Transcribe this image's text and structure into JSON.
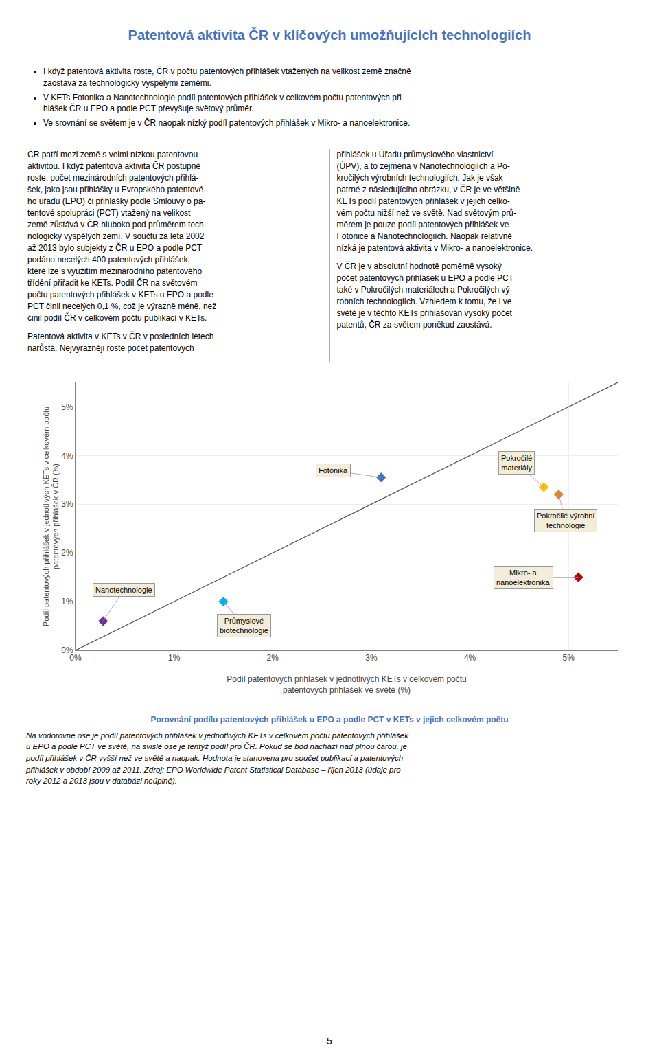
{
  "title": "Patentová aktivita ČR v klíčových umožňujících technologiích",
  "bullets": [
    "I když patentová aktivita roste, ČR v počtu patentových přihlášek vtažených na velikost země značně\nzaostává za technologicky vyspělými zeměmi.",
    "V KETs Fotonika a Nanotechnologie podíl patentových přihlášek v celkovém počtu patentových při-\nhlášek ČR u EPO a podle PCT převyšuje světový průměr.",
    "Ve srovnání se světem je v ČR naopak nízký podíl patentových přihlášek v Mikro- a nanoelektronice."
  ],
  "text_columns": [
    [
      [
        "ČR patří mezi země s velmi nízkou patentovou",
        "aktivitou. I když patentová aktivita ČR postupně",
        "roste, počet mezinárodních patentových přihlá-",
        "šek, jako jsou přihlášky u Evropského patentové-",
        "ho úřadu (EPO) či přihlášky podle Smlouvy o pa-",
        "tentové spolupráci (PCT) vtažený na velikost",
        "země zůstává v ČR hluboko pod průměrem tech-",
        "nologicky vyspělých zemí. V součtu za léta 2002",
        "až 2013 bylo subjekty z ČR u EPO a podle PCT",
        "podáno necelých 400 patentových přihlášek,",
        "které lze s využitím mezinárodního patentového",
        "třídění přiřadit ke KETs. Podíl ČR na světovém",
        "počtu patentových přihlášek v KETs u EPO a podle",
        "PCT činil necelých 0,1 %, což je výrazně méně, než",
        "činil podíl ČR v celkovém počtu publikací v KETs."
      ],
      [
        "Patentová aktivita v KETs v ČR v posledních letech",
        "narůstá. Nejvýrazněji roste počet patentových"
      ]
    ],
    [
      [
        "přihlášek u Úřadu průmyslového vlastnictví",
        "(ÚPV), a to zejména v Nanotechnologiích a Po-",
        "kročilých výrobních technologiích. Jak je však",
        "patrné z následujícího obrázku, v ČR je ve většině",
        "KETs podíl patentových přihlášek v jejich celko-",
        "vém počtu nižší než ve světě. Nad světovým prů-",
        "měrem je pouze podíl patentových přihlášek ve",
        "Fotonice a Nanotechnologiích. Naopak relativně",
        "nízká je patentová aktivita v Mikro- a nanoelektronice."
      ],
      [
        "V ČR je v absolutní hodnotě poměrně vysoký",
        "počet patentových přihlášek u EPO a podle PCT",
        "také v Pokročilých materiálech a Pokročilých vý-",
        "robních technologiích. Vzhledem k tomu, že i ve",
        "světě je v těchto KETs přihlašován vysoký počet",
        "patentů, ČR za světem poněkud zaostává."
      ]
    ]
  ],
  "chart_data": {
    "type": "scatter",
    "title": "Porovnání podílu patentových přihlášek u EPO a podle PCT v KETs v jejich celkovém počtu",
    "x_label": [
      "Podíl patentových přihlášek v jednotlivých KETs v celkovém počtu",
      "patentových přihlášek ve světě (%)"
    ],
    "y_label": [
      "Podíl patentových přihlášek v jednotlivých KETs v celkovém počtu",
      "patentových přihlášek v ČR (%)"
    ],
    "xlim": [
      0,
      5.5
    ],
    "ylim": [
      0,
      5.5
    ],
    "xticks": [
      {
        "value": 0,
        "label": "0%"
      },
      {
        "value": 1,
        "label": "1%"
      },
      {
        "value": 2,
        "label": "2%"
      },
      {
        "value": 3,
        "label": "3%"
      },
      {
        "value": 4,
        "label": "4%"
      },
      {
        "value": 5,
        "label": "5%"
      }
    ],
    "yticks": [
      {
        "value": 0,
        "label": "0%"
      },
      {
        "value": 1,
        "label": "1%"
      },
      {
        "value": 2,
        "label": "2%"
      },
      {
        "value": 3,
        "label": "3%"
      },
      {
        "value": 4,
        "label": "4%"
      },
      {
        "value": 5,
        "label": "5%"
      }
    ],
    "grid": true,
    "series": [
      {
        "type": "scatter",
        "marker": "diamond",
        "labels": [
          "Fotonika",
          "Nanotechnologie",
          "Průmyslové\nbiotechnologie",
          "Pokročilé\nmateriály",
          "Pokročilé výrobní\ntechnologie",
          "Mikro- a\nnanoelektronika"
        ],
        "x": [
          3.1,
          0.28,
          1.5,
          4.75,
          4.9,
          5.1
        ],
        "values": [
          3.55,
          0.6,
          1.0,
          3.35,
          3.2,
          1.5
        ],
        "colors": [
          "#4472C4",
          "#7030A0",
          "#00B0F0",
          "#FFC000",
          "#ED7D31",
          "#C00000"
        ]
      },
      {
        "type": "line",
        "line_style": "solid",
        "color": "#505050",
        "x": [
          0,
          5.5
        ],
        "values": [
          0,
          5.5
        ]
      }
    ]
  },
  "caption": [
    "Na vodorovné ose je podíl patentových přihlášek v jednotlivých KETs v celkovém počtu patentových přihlášek",
    "u EPO a podle PCT ve světě, na svislé ose je tentýž podíl pro ČR. Pokud se bod nachází nad plnou čarou, je",
    "podíl přihlášek v ČR vyšší než ve světě a naopak. Hodnota je stanovena pro součet publikací a patentových",
    "přihlášek v období 2009 až 2011. Zdroj: EPO Worldwide Patent Statistical Database – říjen 2013 (údaje pro",
    "roky 2012 a 2013 jsou v databázi neúplné)."
  ],
  "page_number": "5"
}
